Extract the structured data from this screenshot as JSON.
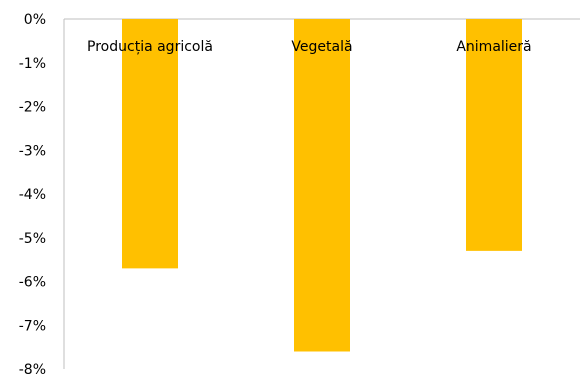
{
  "chart_data": {
    "type": "bar",
    "categories": [
      "Producția agricolă",
      "Vegetală",
      "Animalieră"
    ],
    "values": [
      -5.7,
      -7.6,
      -5.3
    ],
    "unit": "%",
    "ylim": [
      -8,
      0
    ],
    "yticks": [
      0,
      -1,
      -2,
      -3,
      -4,
      -5,
      -6,
      -7,
      -8
    ],
    "ytick_labels": [
      "0%",
      "-1%",
      "-2%",
      "-3%",
      "-4%",
      "-5%",
      "-6%",
      "-7%",
      "-8%"
    ],
    "title": "",
    "xlabel": "",
    "ylabel": "",
    "grid": false,
    "legend": "none",
    "bar_color": "#FFC000",
    "axis_color": "#bfbfbf"
  }
}
